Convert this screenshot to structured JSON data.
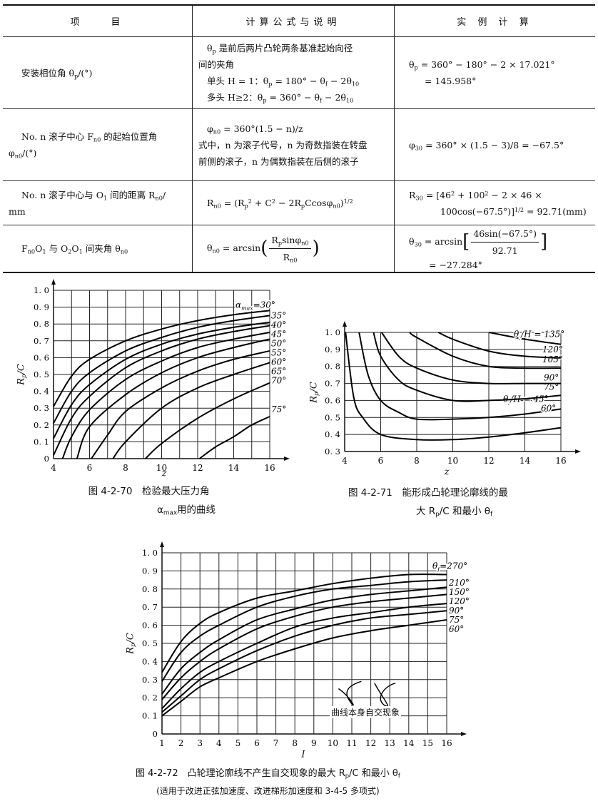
{
  "table": {
    "headers": [
      "项　　目",
      "计算公式与说明",
      "实 例 计 算"
    ],
    "rows": [
      {
        "item": [
          "安装相位角 θ_{p}/(°)"
        ],
        "formula": [
          "θ_{p} 是前后两片凸轮两条基准起始向径",
          "间的夹角",
          "单头 H = 1：θ_{p} = 180° − θ_{f} − 2θ_{10}",
          "多头 H≥2：θ_{p} = 360° − θ_{f} − 2θ_{10}"
        ],
        "example": [
          "θ_{p} = 360° − 180° − 2 × 17.021°",
          "= 145.958°"
        ]
      },
      {
        "item": [
          "No. n 滚子中心 F_{n0} 的起始位置角",
          "φ_{n0}/(°)"
        ],
        "formula": [
          "φ_{n0} = 360°(1.5 − n)/z",
          "式中，n 为滚子代号，n 为奇数指装在转盘",
          "前侧的滚子，n 为偶数指装在后侧的滚子"
        ],
        "example": [
          "φ_{30} = 360° × (1.5 − 3)/8 = −67.5°"
        ]
      },
      {
        "item": [
          "No. n 滚子中心与 O_{1} 间的距离 R_{n0}/",
          "mm"
        ],
        "formula": [
          "R_{n0} = (R_{p}^{2} + C^{2} − 2R_{p}Ccosφ_{n0})^{1/2}"
        ],
        "example": [
          "R_{30} = [46^{2} + 100^{2} − 2 × 46 ×",
          "100cos(−67.5°)]^{1/2} = 92.71(mm)"
        ]
      },
      {
        "item": [
          "F_{n0}O_{1} 与 O_{2}O_{1} 间夹角 θ_{n0}"
        ],
        "formula": {
          "prefix": "θ_{n0} = arcsin",
          "open": "(",
          "num": "R_{p}sinφ_{n0}",
          "den": "R_{n0}",
          "close": ")"
        },
        "example": {
          "prefix": "θ_{30} = arcsin",
          "open": "[",
          "num": "46sin(−67.5°)",
          "den": "92.71",
          "close": "]",
          "result": "= −27.284°"
        }
      }
    ]
  },
  "captions": {
    "fig70": [
      "图 4-2-70　检验最大压力角",
      "α_{max}用的曲线"
    ],
    "fig71": [
      "图 4-2-71　能形成凸轮理论廓线的最",
      "大 R_{p}/C 和最小 θ_{f}"
    ],
    "fig72": [
      "图 4-2-72　凸轮理论廓线不产生自交现象的最大 R_{p}/C 和最小 θ_{f}",
      "(适用于改进正弦加速度、改进梯形加速度和 3-4-5 多项式)"
    ]
  },
  "chart_data": [
    {
      "type": "line",
      "xlabel": "z",
      "ylabel": "R_{p}/C",
      "xlim": [
        4,
        16
      ],
      "ylim": [
        0,
        1.0
      ],
      "xticks": [
        4,
        6,
        8,
        10,
        12,
        14,
        16
      ],
      "yticks": [
        "0",
        "0.1",
        "0.2",
        "0.3",
        "0.4",
        "0.5",
        "0.6",
        "0.7",
        "0.8",
        "0.9",
        "1.0"
      ],
      "grid": true,
      "series": [
        {
          "name": "α_{max}=30°",
          "points": [
            [
              4,
              0.31
            ],
            [
              5,
              0.49
            ],
            [
              6,
              0.59
            ],
            [
              8,
              0.7
            ],
            [
              10,
              0.77
            ],
            [
              12,
              0.82
            ],
            [
              14,
              0.855
            ],
            [
              16,
              0.88
            ]
          ]
        },
        {
          "name": "35°",
          "points": [
            [
              4,
              0.21
            ],
            [
              5,
              0.4
            ],
            [
              6,
              0.51
            ],
            [
              8,
              0.64
            ],
            [
              10,
              0.72
            ],
            [
              12,
              0.78
            ],
            [
              14,
              0.82
            ],
            [
              16,
              0.85
            ]
          ]
        },
        {
          "name": "40°",
          "points": [
            [
              4,
              0.12
            ],
            [
              5,
              0.32
            ],
            [
              6,
              0.44
            ],
            [
              8,
              0.59
            ],
            [
              10,
              0.68
            ],
            [
              12,
              0.74
            ],
            [
              14,
              0.78
            ],
            [
              16,
              0.81
            ]
          ]
        },
        {
          "name": "45°",
          "points": [
            [
              4,
              0.02
            ],
            [
              5,
              0.24
            ],
            [
              6,
              0.37
            ],
            [
              8,
              0.54
            ],
            [
              10,
              0.64
            ],
            [
              12,
              0.71
            ],
            [
              14,
              0.755
            ],
            [
              16,
              0.79
            ]
          ]
        },
        {
          "name": "50°",
          "points": [
            [
              4.5,
              0
            ],
            [
              5,
              0.13
            ],
            [
              6,
              0.29
            ],
            [
              8,
              0.47
            ],
            [
              10,
              0.58
            ],
            [
              12,
              0.66
            ],
            [
              14,
              0.71
            ],
            [
              16,
              0.75
            ]
          ]
        },
        {
          "name": "55°",
          "points": [
            [
              5.3,
              0
            ],
            [
              6,
              0.19
            ],
            [
              8,
              0.38
            ],
            [
              10,
              0.51
            ],
            [
              12,
              0.6
            ],
            [
              14,
              0.66
            ],
            [
              16,
              0.71
            ]
          ]
        },
        {
          "name": "60°",
          "points": [
            [
              6.1,
              0
            ],
            [
              7,
              0.14
            ],
            [
              8,
              0.28
            ],
            [
              10,
              0.42
            ],
            [
              12,
              0.52
            ],
            [
              14,
              0.59
            ],
            [
              16,
              0.64
            ]
          ]
        },
        {
          "name": "65°",
          "points": [
            [
              7.3,
              0
            ],
            [
              8,
              0.1
            ],
            [
              10,
              0.3
            ],
            [
              12,
              0.42
            ],
            [
              14,
              0.5
            ],
            [
              16,
              0.57
            ]
          ]
        },
        {
          "name": "70°",
          "points": [
            [
              9.1,
              0
            ],
            [
              10,
              0.09
            ],
            [
              12,
              0.24
            ],
            [
              14,
              0.355
            ],
            [
              16,
              0.45
            ]
          ]
        },
        {
          "name": "75°",
          "points": [
            [
              12.1,
              0
            ],
            [
              13,
              0.07
            ],
            [
              14,
              0.13
            ],
            [
              15,
              0.2
            ],
            [
              16,
              0.25
            ]
          ]
        }
      ]
    },
    {
      "type": "line",
      "xlabel": "z",
      "ylabel": "R_{p}/C",
      "xlim": [
        4,
        16
      ],
      "ylim": [
        0.3,
        1.0
      ],
      "xticks": [
        4,
        6,
        8,
        10,
        12,
        14,
        16
      ],
      "yticks": [
        "0.3",
        "0.4",
        "0.5",
        "0.6",
        "0.7",
        "0.8",
        "0.9",
        "1.0"
      ],
      "grid": true,
      "series": [
        {
          "name": "θ_{f}/H = 45°",
          "points": [
            [
              4.05,
              1.0
            ],
            [
              4.5,
              0.62
            ],
            [
              5,
              0.5
            ],
            [
              6,
              0.4
            ],
            [
              8,
              0.37
            ],
            [
              10,
              0.37
            ],
            [
              12,
              0.385
            ],
            [
              14,
              0.41
            ],
            [
              16,
              0.44
            ]
          ]
        },
        {
          "name": "60°",
          "points": [
            [
              4.8,
              1.0
            ],
            [
              5.3,
              0.75
            ],
            [
              6,
              0.6
            ],
            [
              7,
              0.53
            ],
            [
              8,
              0.49
            ],
            [
              10,
              0.49
            ],
            [
              12,
              0.5
            ],
            [
              14,
              0.52
            ],
            [
              16,
              0.55
            ]
          ]
        },
        {
          "name": "75°",
          "points": [
            [
              5.6,
              1.0
            ],
            [
              6,
              0.86
            ],
            [
              7,
              0.72
            ],
            [
              8,
              0.66
            ],
            [
              10,
              0.6
            ],
            [
              12,
              0.6
            ],
            [
              14,
              0.61
            ],
            [
              16,
              0.63
            ]
          ]
        },
        {
          "name": "90°",
          "points": [
            [
              6.05,
              1.0
            ],
            [
              7,
              0.86
            ],
            [
              8,
              0.79
            ],
            [
              10,
              0.72
            ],
            [
              12,
              0.7
            ],
            [
              14,
              0.7
            ],
            [
              16,
              0.7
            ]
          ]
        },
        {
          "name": "105°",
          "points": [
            [
              7.6,
              1.0
            ],
            [
              8,
              0.97
            ],
            [
              10,
              0.86
            ],
            [
              12,
              0.8
            ],
            [
              14,
              0.79
            ],
            [
              16,
              0.79
            ]
          ]
        },
        {
          "name": "120°",
          "points": [
            [
              9.2,
              1.0
            ],
            [
              10,
              0.96
            ],
            [
              12,
              0.89
            ],
            [
              14,
              0.86
            ],
            [
              16,
              0.85
            ]
          ]
        },
        {
          "name": "θ_{f}/H = 135°",
          "points": [
            [
              12,
              1.0
            ],
            [
              14,
              0.96
            ],
            [
              16,
              0.93
            ]
          ]
        }
      ]
    },
    {
      "type": "line",
      "xlabel": "I",
      "ylabel": "R_{p}/C",
      "xlim": [
        1,
        16
      ],
      "ylim": [
        0,
        1.0
      ],
      "xticks": [
        1,
        2,
        3,
        4,
        5,
        6,
        7,
        8,
        9,
        10,
        11,
        12,
        13,
        14,
        15,
        16
      ],
      "yticks": [
        "0",
        "0.1",
        "0.2",
        "0.3",
        "0.4",
        "0.5",
        "0.6",
        "0.7",
        "0.8",
        "0.9",
        "1.0"
      ],
      "grid": true,
      "annotation": "曲线本身自交现象",
      "series": [
        {
          "name": "θ_{f}=270°",
          "points": [
            [
              1,
              0.34
            ],
            [
              2,
              0.51
            ],
            [
              3,
              0.61
            ],
            [
              4,
              0.67
            ],
            [
              6,
              0.75
            ],
            [
              8,
              0.79
            ],
            [
              10,
              0.83
            ],
            [
              12,
              0.86
            ],
            [
              14,
              0.88
            ],
            [
              16,
              0.88
            ]
          ]
        },
        {
          "name": "210°",
          "points": [
            [
              1,
              0.29
            ],
            [
              2,
              0.45
            ],
            [
              3,
              0.54
            ],
            [
              4,
              0.6
            ],
            [
              6,
              0.7
            ],
            [
              8,
              0.76
            ],
            [
              10,
              0.8
            ],
            [
              12,
              0.82
            ],
            [
              14,
              0.84
            ],
            [
              16,
              0.85
            ]
          ]
        },
        {
          "name": "150°",
          "points": [
            [
              1,
              0.22
            ],
            [
              2,
              0.36
            ],
            [
              3,
              0.45
            ],
            [
              4,
              0.52
            ],
            [
              6,
              0.63
            ],
            [
              8,
              0.69
            ],
            [
              10,
              0.74
            ],
            [
              12,
              0.77
            ],
            [
              14,
              0.79
            ],
            [
              16,
              0.81
            ]
          ]
        },
        {
          "name": "120°",
          "points": [
            [
              1,
              0.19
            ],
            [
              2,
              0.31
            ],
            [
              3,
              0.4
            ],
            [
              4,
              0.47
            ],
            [
              6,
              0.58
            ],
            [
              8,
              0.65
            ],
            [
              10,
              0.7
            ],
            [
              12,
              0.73
            ],
            [
              14,
              0.75
            ],
            [
              16,
              0.77
            ]
          ]
        },
        {
          "name": "90°",
          "points": [
            [
              1,
              0.14
            ],
            [
              2,
              0.25
            ],
            [
              3,
              0.34
            ],
            [
              4,
              0.4
            ],
            [
              6,
              0.5
            ],
            [
              8,
              0.59
            ],
            [
              10,
              0.64
            ],
            [
              12,
              0.67
            ],
            [
              14,
              0.7
            ],
            [
              16,
              0.72
            ]
          ]
        },
        {
          "name": "75°",
          "points": [
            [
              1,
              0.12
            ],
            [
              2,
              0.21
            ],
            [
              3,
              0.3
            ],
            [
              4,
              0.36
            ],
            [
              6,
              0.46
            ],
            [
              8,
              0.54
            ],
            [
              10,
              0.6
            ],
            [
              12,
              0.64
            ],
            [
              14,
              0.66
            ],
            [
              16,
              0.68
            ]
          ]
        },
        {
          "name": "60°",
          "points": [
            [
              1,
              0.1
            ],
            [
              2,
              0.18
            ],
            [
              3,
              0.26
            ],
            [
              4,
              0.31
            ],
            [
              6,
              0.4
            ],
            [
              8,
              0.47
            ],
            [
              10,
              0.53
            ],
            [
              12,
              0.57
            ],
            [
              14,
              0.6
            ],
            [
              16,
              0.63
            ]
          ]
        }
      ]
    }
  ]
}
